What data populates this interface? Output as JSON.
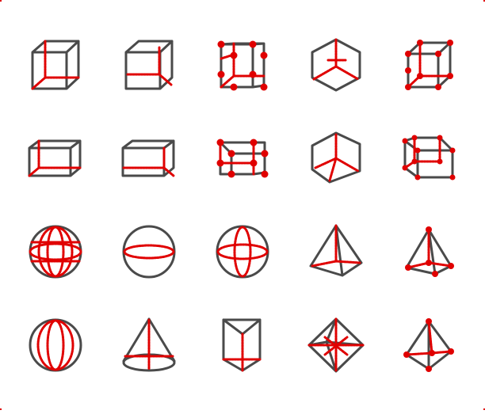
{
  "title": "",
  "accent_color": "#e00000",
  "line_color": "#4a4a4a",
  "background_color": "#ffffff",
  "icons": [
    {
      "name": "cube-back-edges-icon"
    },
    {
      "name": "cube-back-corner-icon"
    },
    {
      "name": "cube-all-vertices-icon"
    },
    {
      "name": "cube-center-axes-icon"
    },
    {
      "name": "cube-vertices-icon"
    },
    {
      "name": "cuboid-back-edges-icon"
    },
    {
      "name": "cuboid-back-corner-icon"
    },
    {
      "name": "cuboid-all-vertices-icon"
    },
    {
      "name": "cuboid-center-axes-icon"
    },
    {
      "name": "cuboid-vertices-icon"
    },
    {
      "name": "sphere-grid-icon"
    },
    {
      "name": "sphere-equator-icon"
    },
    {
      "name": "sphere-cross-icon"
    },
    {
      "name": "tetrahedron-edges-icon"
    },
    {
      "name": "pyramid-vertices-icon"
    },
    {
      "name": "sphere-meridians-icon"
    },
    {
      "name": "cone-axis-icon"
    },
    {
      "name": "prism-edges-icon"
    },
    {
      "name": "octahedron-icon"
    },
    {
      "name": "tetrahedron-vertices-icon"
    }
  ]
}
